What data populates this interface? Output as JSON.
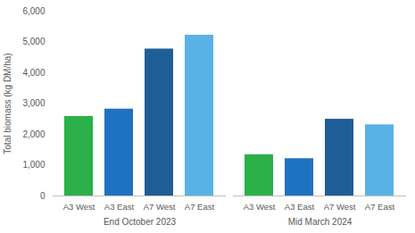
{
  "chart_data": {
    "type": "bar",
    "y_label": "Total biomass (kg DM/ha)",
    "categories": [
      "A3 West",
      "A3 East",
      "A7 West",
      "A7 East"
    ],
    "series": [
      {
        "name": "End October 2023",
        "values": [
          2580,
          2820,
          4770,
          5220
        ]
      },
      {
        "name": "Mid March 2024",
        "values": [
          1340,
          1210,
          2490,
          2310
        ]
      }
    ],
    "colors": [
      "#2bb04a",
      "#1f72c0",
      "#1f5d96",
      "#58b2e6"
    ],
    "ylim": [
      0,
      6000
    ],
    "yticks": [
      0,
      1000,
      2000,
      3000,
      4000,
      5000,
      6000
    ],
    "grid": false
  }
}
